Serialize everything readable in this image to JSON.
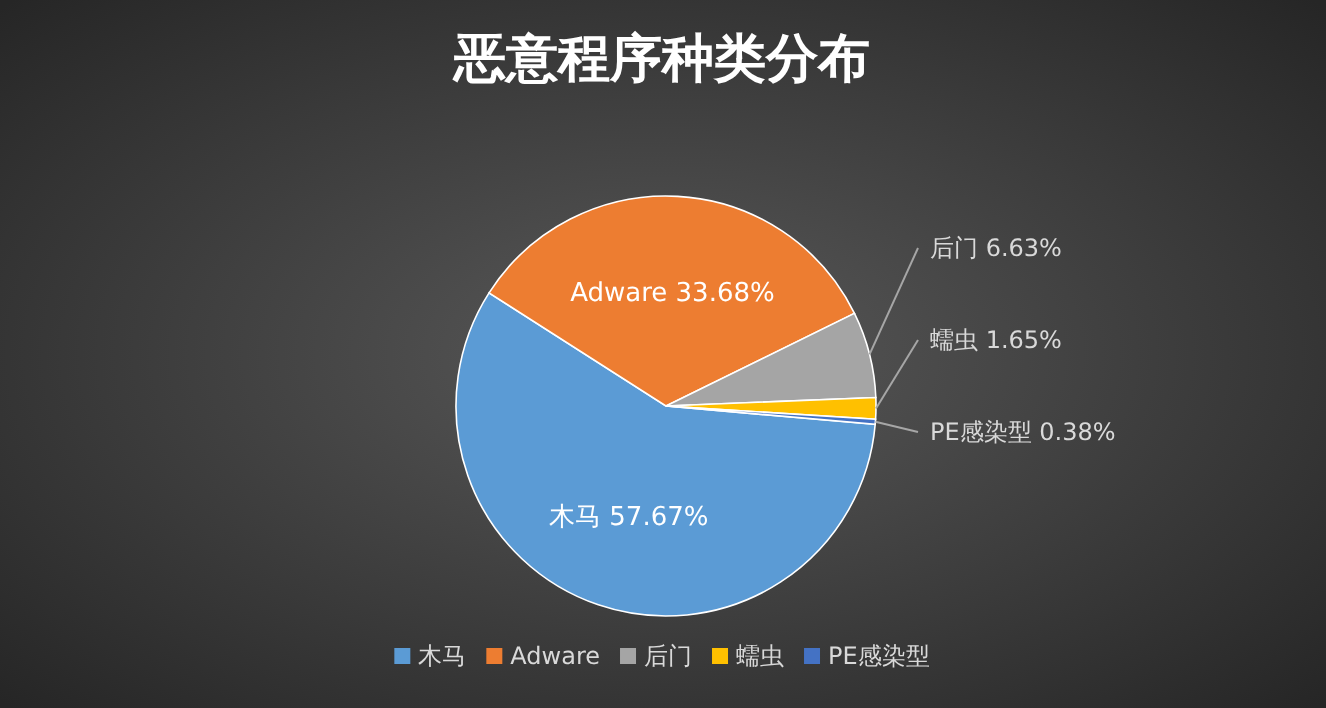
{
  "chart_data": {
    "type": "pie",
    "title": "恶意程序种类分布",
    "categories": [
      "木马",
      "Adware",
      "后门",
      "蠕虫",
      "PE感染型"
    ],
    "values": [
      57.67,
      33.68,
      6.63,
      1.65,
      0.38
    ],
    "value_labels": [
      "57.67%",
      "33.68%",
      "6.63%",
      "1.65%",
      "0.38%"
    ],
    "colors": [
      "#5b9bd5",
      "#ed7d31",
      "#a5a5a5",
      "#ffc000",
      "#4472c4"
    ],
    "legend": "bottom"
  }
}
